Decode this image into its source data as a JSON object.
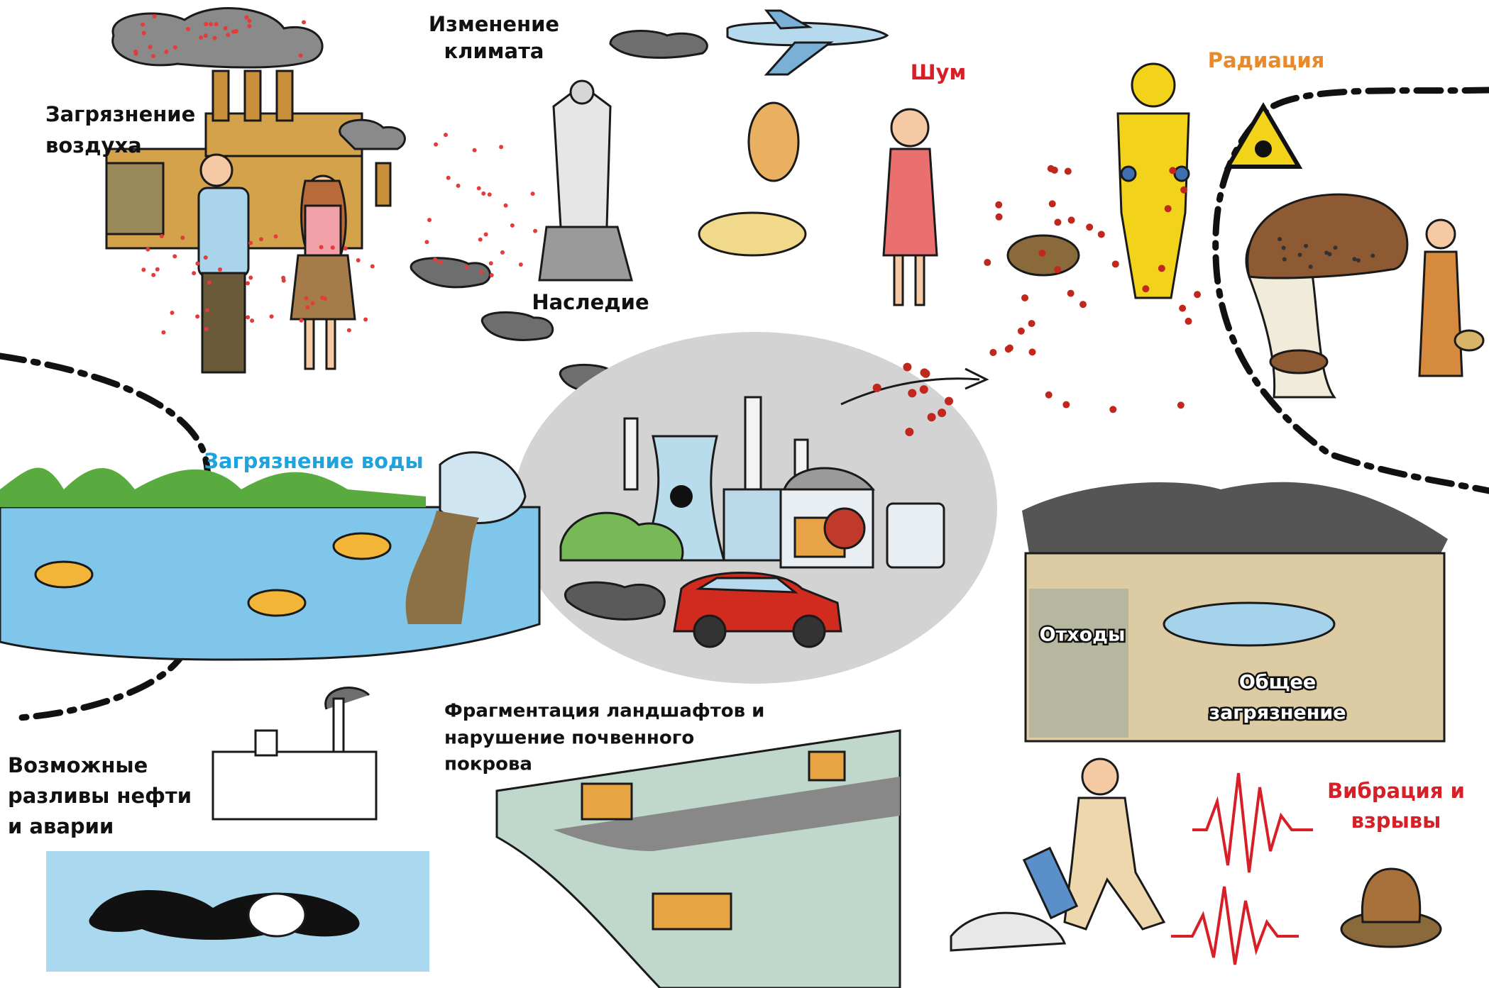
{
  "labels": [
    {
      "lines": [
        "Изменение",
        "климата"
      ]
    },
    {
      "lines": [
        "Загрязнение",
        "воздуха"
      ]
    },
    {
      "lines": [
        "Шум"
      ]
    },
    {
      "lines": [
        "Радиация"
      ]
    },
    {
      "lines": [
        "Наследие"
      ]
    },
    {
      "lines": [
        "Загрязнение воды"
      ]
    },
    {
      "lines": [
        "Отходы"
      ]
    },
    {
      "lines": [
        "Общее",
        "загрязнение"
      ]
    },
    {
      "lines": [
        "Фрагментация ландшафтов и",
        "нарушение почвенного",
        "покрова"
      ]
    },
    {
      "lines": [
        "Возможные",
        "разливы нефти",
        "и аварии"
      ]
    },
    {
      "lines": [
        "Вибрация и",
        "взрывы"
      ]
    }
  ]
}
